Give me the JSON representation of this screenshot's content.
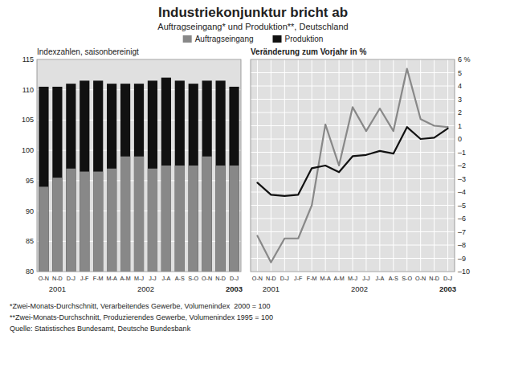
{
  "chart_data": [
    {
      "type": "bar",
      "title": "Industriekonjunktur bricht ab",
      "subtitle": "Auftragseingang* und Produktion**, Deutschland",
      "ylabel": "Indexzahlen, saisonbereinigt",
      "categories": [
        "O-N",
        "N-D",
        "D-J",
        "J-F",
        "F-M",
        "M-A",
        "A-M",
        "M-J",
        "J-J",
        "J-A",
        "A-S",
        "S-O",
        "O-N",
        "N-D",
        "D-J"
      ],
      "series": [
        {
          "name": "Auftragseingang",
          "color": "#888888",
          "values": [
            94.0,
            95.5,
            97.0,
            96.5,
            96.5,
            97.0,
            99.0,
            99.0,
            97.0,
            97.5,
            97.5,
            97.5,
            99.0,
            97.5,
            97.5
          ]
        },
        {
          "name": "Produktion",
          "color": "#111111",
          "values": [
            110.5,
            110.5,
            111.0,
            111.5,
            111.5,
            111.0,
            111.0,
            111.0,
            111.5,
            112.0,
            111.5,
            111.0,
            111.5,
            111.5,
            110.5
          ]
        }
      ],
      "ylim": [
        80,
        115
      ],
      "yticks": [
        80,
        85,
        90,
        95,
        100,
        105,
        110,
        115
      ],
      "grid": "y",
      "legend": "top",
      "annotations": [
        "2001",
        "2002",
        "2003"
      ],
      "footnotes": [
        "*Zwei-Monats-Durchschnitt, Verarbeitendes Gewerbe, Volumenindex  2000 = 100",
        "**Zwei-Monats-Durchschnitt, Produzierendes Gewerbe, Volumenindex 1995 = 100",
        "Quelle: Statistisches Bundesamt, Deutsche Bundesbank"
      ]
    },
    {
      "type": "line",
      "ylabel": "Veränderung zum Vorjahr in %",
      "categories": [
        "O-N",
        "N-D",
        "D-J",
        "J-F",
        "F-M",
        "M-A",
        "A-M",
        "M-J",
        "J-J",
        "J-A",
        "A-S",
        "S-O",
        "O-N",
        "N-D",
        "D-J"
      ],
      "series": [
        {
          "name": "Auftragseingang",
          "color": "#888888",
          "values": [
            -7.3,
            -9.3,
            -7.5,
            -7.5,
            -5.0,
            1.1,
            -2.0,
            2.4,
            0.6,
            2.3,
            0.6,
            5.3,
            1.5,
            1.0,
            0.9
          ]
        },
        {
          "name": "Produktion",
          "color": "#111111",
          "values": [
            -3.3,
            -4.2,
            -4.3,
            -4.2,
            -2.2,
            -2.0,
            -2.5,
            -1.3,
            -1.2,
            -0.9,
            -1.1,
            0.9,
            0.0,
            0.1,
            0.8
          ]
        }
      ],
      "ylim": [
        -10,
        6
      ],
      "yticks": [
        {
          "value": -10,
          "label": "–10"
        },
        {
          "value": -9,
          "label": "–9"
        },
        {
          "value": -8,
          "label": "–8"
        },
        {
          "value": -7,
          "label": "–7"
        },
        {
          "value": -6,
          "label": "–6"
        },
        {
          "value": -5,
          "label": "–5"
        },
        {
          "value": -4,
          "label": "–4"
        },
        {
          "value": -3,
          "label": "–3"
        },
        {
          "value": -2,
          "label": "–2"
        },
        {
          "value": -1,
          "label": "–1"
        },
        0,
        1,
        2,
        3,
        4,
        5,
        {
          "value": 6,
          "label": "6 %"
        }
      ],
      "grid": true,
      "annotations": [
        "2001",
        "2002",
        "2003"
      ]
    }
  ]
}
